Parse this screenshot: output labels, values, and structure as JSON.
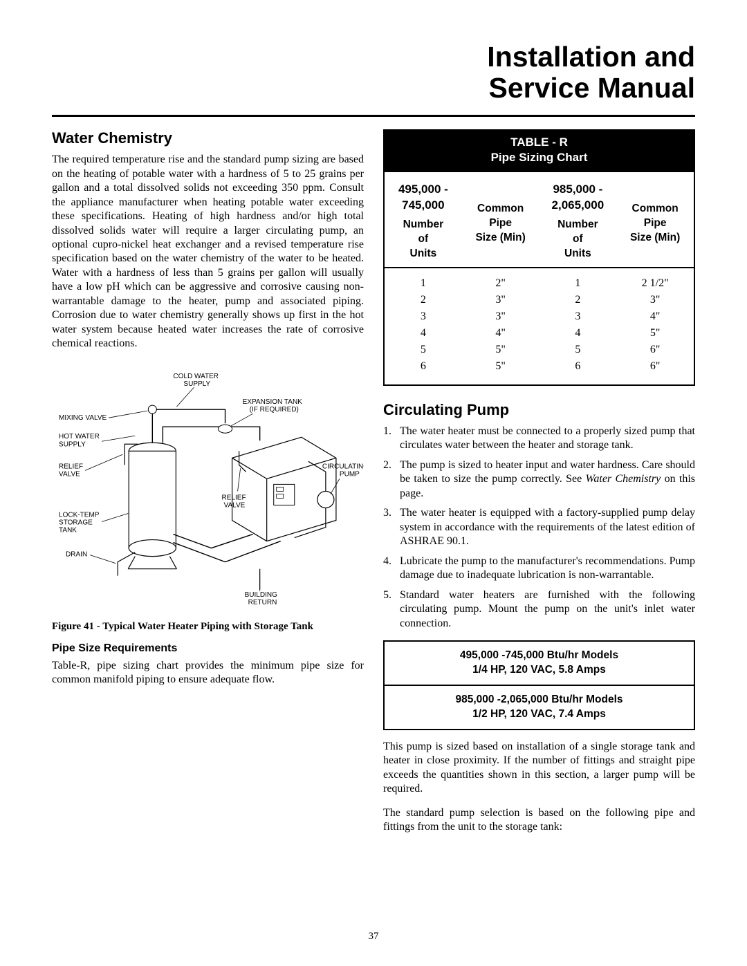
{
  "doc_title_line1": "Installation and",
  "doc_title_line2": "Service Manual",
  "page_number": "37",
  "left": {
    "heading_water_chem": "Water Chemistry",
    "water_chem_para": "The required temperature rise and the standard pump sizing are based on the heating of potable water with a hardness of 5 to 25 grains per gallon and a total dissolved solids not exceeding 350 ppm. Consult the appliance manufacturer when heating potable water exceeding these specifications. Heating of high hardness and/or high total dissolved solids water will require a larger circulating pump, an optional cupro-nickel heat exchanger and a revised temperature rise specification based on the water chemistry of the water to be heated. Water with a hardness of less than 5 grains per gallon will usually have a low pH which can be aggressive and corrosive causing non-warrantable damage to the heater, pump and associated piping. Corrosion due to water chemistry generally shows up first in the hot water system because heated water increases the rate of corrosive chemical reactions.",
    "figure_caption": "Figure 41 - Typical Water Heater Piping with Storage Tank",
    "heading_pipe_size": "Pipe Size Requirements",
    "pipe_size_para": "Table-R, pipe sizing chart provides the minimum pipe size for common manifold piping to ensure adequate flow.",
    "diagram": {
      "labels": {
        "cold_water": "COLD WATER\nSUPPLY",
        "mixing_valve": "MIXING VALVE",
        "hot_water": "HOT WATER\nSUPPLY",
        "relief_valve": "RELIEF\nVALVE",
        "lock_temp": "LOCK-TEMP\nSTORAGE\nTANK",
        "drain": "DRAIN",
        "expansion": "EXPANSION TANK\n(IF REQUIRED)",
        "circ_pump": "CIRCULATING\nPUMP",
        "relief_valve2": "RELIEF\nVALVE",
        "building_return": "BUILDING\nRETURN"
      },
      "stroke": "#000000",
      "fill": "#ffffff"
    }
  },
  "right": {
    "table_r": {
      "title_line1": "TABLE - R",
      "title_line2": "Pipe Sizing Chart",
      "range_a": "495,000 - 745,000",
      "range_b": "985,000 - 2,065,000",
      "col_a1": "Number of Units",
      "col_a2": "Common Pipe Size (Min)",
      "col_b1": "Number of Units",
      "col_b2": "Common Pipe Size (Min)",
      "rows": [
        {
          "a1": "1",
          "a2": "2\"",
          "b1": "1",
          "b2": "2 1/2\""
        },
        {
          "a1": "2",
          "a2": "3\"",
          "b1": "2",
          "b2": "3\""
        },
        {
          "a1": "3",
          "a2": "3\"",
          "b1": "3",
          "b2": "4\""
        },
        {
          "a1": "4",
          "a2": "4\"",
          "b1": "4",
          "b2": "5\""
        },
        {
          "a1": "5",
          "a2": "5\"",
          "b1": "5",
          "b2": "6\""
        },
        {
          "a1": "6",
          "a2": "5\"",
          "b1": "6",
          "b2": "6\""
        }
      ]
    },
    "heading_circ_pump": "Circulating Pump",
    "list": [
      {
        "n": "1.",
        "t": "The water heater must be connected to a properly sized pump that circulates water between the heater and storage tank."
      },
      {
        "n": "2.",
        "t": "The pump is sized to heater input and water hardness. Care should be taken to size the pump correctly. See ",
        "t_italic": "Water Chemistry",
        "t_after": " on this page."
      },
      {
        "n": "3.",
        "t": "The water heater is equipped with a factory-supplied pump delay system in accordance with the requirements of the latest edition of ASHRAE 90.1."
      },
      {
        "n": "4.",
        "t": "Lubricate the pump to the manufacturer's recommendations. Pump damage due to inadequate lubrication is non-warrantable."
      },
      {
        "n": "5.",
        "t": "Standard water heaters are furnished with the following circulating pump. Mount the pump on the unit's inlet water connection."
      }
    ],
    "spec_box": {
      "row1_line1": "495,000 -745,000 Btu/hr Models",
      "row1_line2": "1/4 HP, 120 VAC, 5.8 Amps",
      "row2_line1": "985,000 -2,065,000 Btu/hr Models",
      "row2_line2": "1/2 HP, 120 VAC, 7.4 Amps"
    },
    "para_after_box": "This pump is sized based on installation of a single storage tank and heater in close proximity.  If the number of fittings and straight pipe exceeds the quantities shown in this section, a larger pump will be required.",
    "para_last": "The standard pump selection is based on the following pipe and fittings from the unit to the storage tank:"
  }
}
